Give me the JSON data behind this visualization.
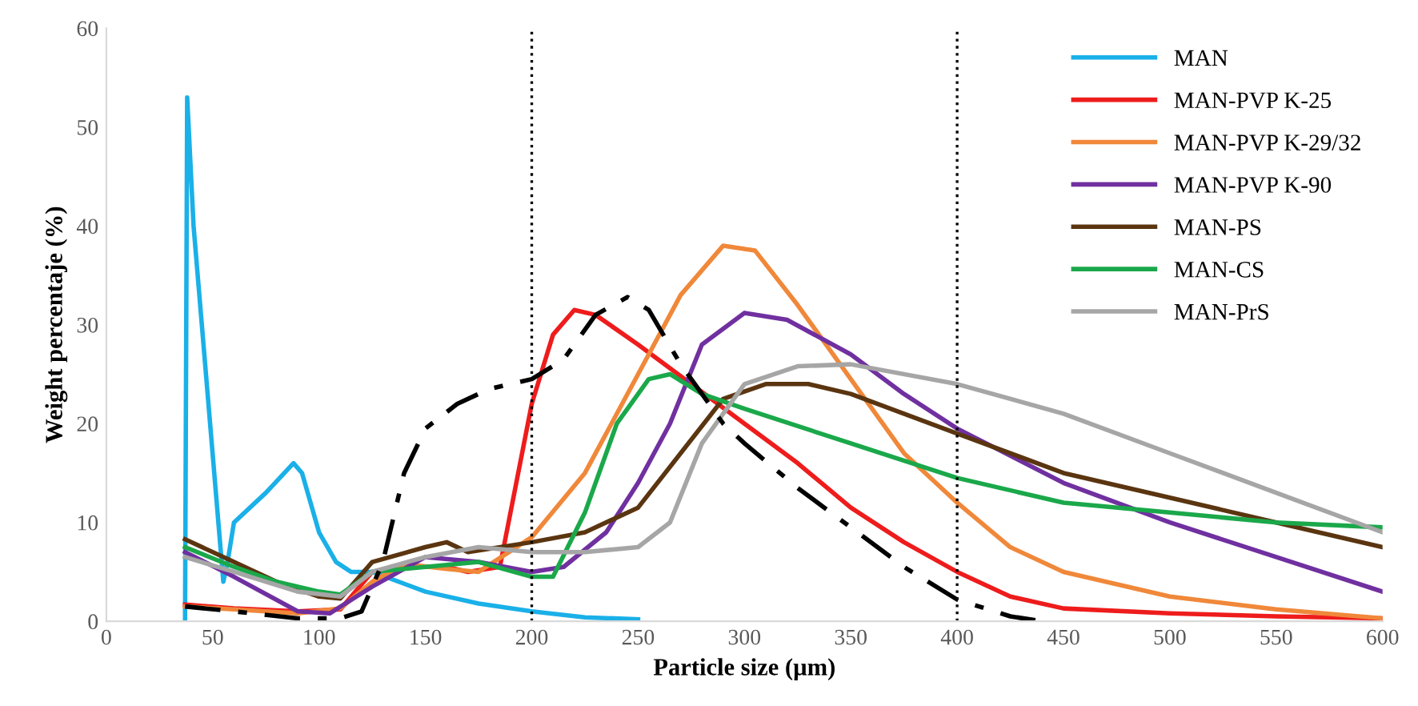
{
  "chart_data": {
    "type": "line",
    "xlabel": "Particle size (µm)",
    "ylabel": "Weight percentaje (%)",
    "xlim": [
      0,
      600
    ],
    "ylim": [
      0,
      60
    ],
    "xticks": [
      0,
      50,
      100,
      150,
      200,
      250,
      300,
      350,
      400,
      450,
      500,
      550,
      600
    ],
    "yticks": [
      0,
      10,
      20,
      30,
      40,
      50,
      60
    ],
    "grid": false,
    "legend": "top right",
    "marker": "none",
    "ref_lines": [
      {
        "axis": "x",
        "value": 200,
        "color": "#000000",
        "line_style": "dotted"
      },
      {
        "axis": "x",
        "value": 400,
        "color": "#000000",
        "line_style": "dotted"
      }
    ],
    "series": [
      {
        "name": "MAN",
        "color": "#1ab0e8",
        "x": [
          37,
          38,
          41,
          55,
          57,
          60,
          75,
          88,
          92,
          100,
          108,
          115,
          125,
          150,
          175,
          200,
          225,
          250
        ],
        "values": [
          0,
          53,
          40,
          4,
          6,
          10,
          13,
          16,
          15,
          9,
          6,
          5,
          5,
          3,
          1.8,
          1,
          0.4,
          0.2
        ]
      },
      {
        "name": "MAN-PVP K-25",
        "color": "#ee1c1c",
        "x": [
          37,
          60,
          90,
          110,
          125,
          135,
          160,
          170,
          185,
          200,
          210,
          220,
          230,
          250,
          275,
          300,
          325,
          350,
          375,
          400,
          425,
          450,
          500,
          550,
          600
        ],
        "values": [
          1.7,
          1.3,
          1,
          1.2,
          5,
          5.5,
          5.5,
          5,
          5.5,
          22,
          29,
          31.5,
          31,
          28,
          24,
          20,
          16,
          11.5,
          8,
          5,
          2.5,
          1.3,
          0.8,
          0.5,
          0.3
        ]
      },
      {
        "name": "MAN-PVP K-29/32",
        "color": "#f0883a",
        "x": [
          37,
          60,
          90,
          110,
          125,
          140,
          160,
          175,
          200,
          225,
          250,
          270,
          290,
          305,
          325,
          350,
          375,
          400,
          425,
          450,
          500,
          550,
          600
        ],
        "values": [
          1.5,
          1.2,
          0.8,
          1.3,
          4,
          5.8,
          5.3,
          5,
          8.5,
          15,
          25,
          33,
          38,
          37.5,
          32,
          24.5,
          17,
          12,
          7.5,
          5,
          2.5,
          1.2,
          0.3
        ]
      },
      {
        "name": "MAN-PVP K-90",
        "color": "#7030a0",
        "x": [
          37,
          60,
          90,
          105,
          125,
          150,
          175,
          200,
          215,
          235,
          250,
          265,
          280,
          300,
          320,
          350,
          375,
          400,
          450,
          500,
          550,
          600
        ],
        "values": [
          7,
          4.5,
          1,
          0.8,
          3.5,
          6.5,
          6,
          5,
          5.5,
          9,
          14,
          20,
          28,
          31.2,
          30.5,
          27,
          23,
          19.5,
          14,
          10,
          6.5,
          3
        ]
      },
      {
        "name": "MAN-PS",
        "color": "#5a3510",
        "x": [
          37,
          60,
          80,
          100,
          110,
          125,
          150,
          160,
          170,
          200,
          225,
          250,
          270,
          290,
          310,
          330,
          350,
          400,
          450,
          500,
          550,
          600
        ],
        "values": [
          8.3,
          6,
          4,
          2.5,
          2.3,
          6,
          7.5,
          8,
          7,
          8,
          9,
          11.5,
          17,
          22.5,
          24,
          24,
          23,
          19,
          15,
          12.5,
          10,
          7.5
        ]
      },
      {
        "name": "MAN-CS",
        "color": "#1aa84a",
        "x": [
          37,
          60,
          80,
          100,
          110,
          125,
          150,
          175,
          200,
          210,
          225,
          240,
          255,
          265,
          280,
          300,
          350,
          400,
          450,
          500,
          550,
          600
        ],
        "values": [
          7.5,
          5.5,
          4,
          3,
          2.7,
          5,
          5.5,
          6,
          4.5,
          4.5,
          11,
          20,
          24.5,
          25,
          23,
          21.5,
          18,
          14.5,
          12,
          11,
          10,
          9.5
        ]
      },
      {
        "name": "MAN-PrS",
        "color": "#a6a6a6",
        "x": [
          37,
          60,
          90,
          110,
          125,
          150,
          175,
          200,
          225,
          250,
          265,
          280,
          300,
          325,
          350,
          400,
          450,
          500,
          550,
          600
        ],
        "values": [
          6.5,
          5,
          3,
          2.5,
          5,
          6.5,
          7.5,
          7,
          7,
          7.5,
          10,
          18,
          24,
          25.8,
          26,
          24,
          21,
          17,
          13,
          9
        ]
      },
      {
        "color": "#000000",
        "line_style": "dashdot",
        "x": [
          37,
          60,
          90,
          110,
          120,
          130,
          140,
          150,
          165,
          180,
          200,
          215,
          230,
          245,
          255,
          270,
          290,
          300,
          325,
          350,
          375,
          400,
          425,
          440
        ],
        "values": [
          1.5,
          1,
          0.3,
          0.3,
          1,
          6,
          15,
          19.5,
          22,
          23.5,
          24.5,
          26.5,
          31,
          32.8,
          31.5,
          26,
          20,
          18,
          13.5,
          9.5,
          5.5,
          2.2,
          0.5,
          0
        ]
      }
    ]
  }
}
